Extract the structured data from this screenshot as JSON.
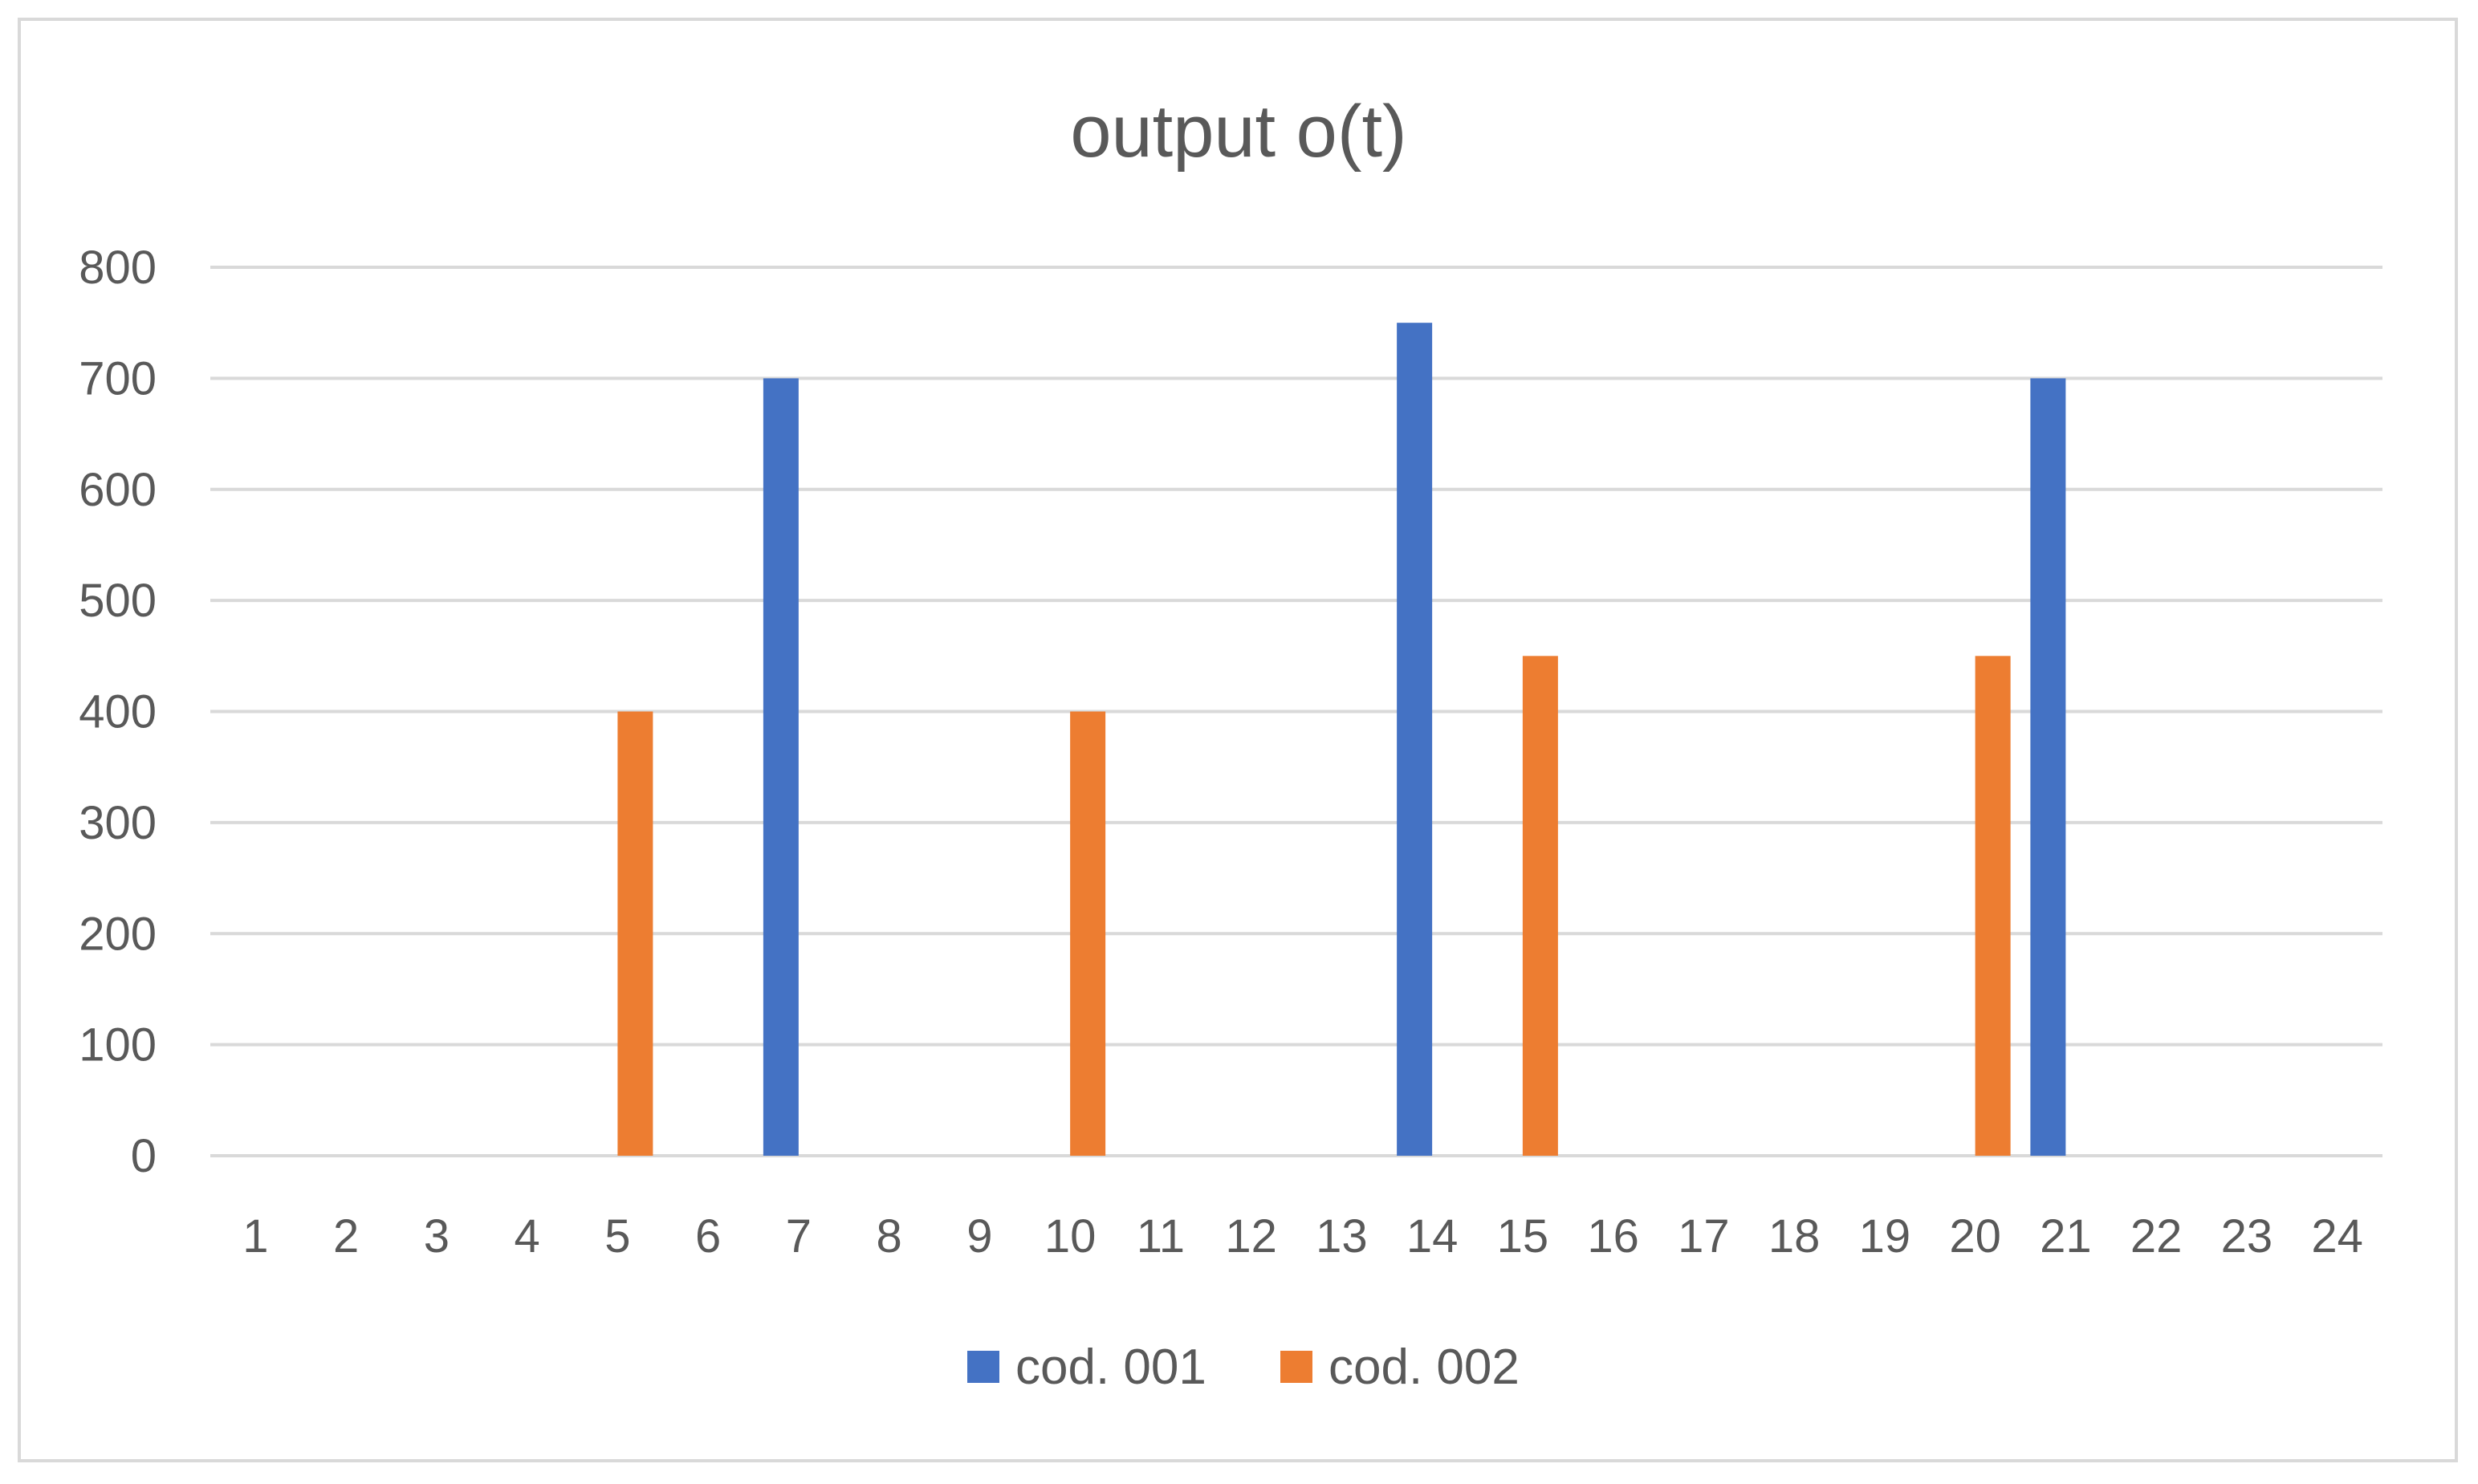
{
  "chart_data": {
    "type": "bar",
    "title": "output o(t)",
    "xlabel": "",
    "ylabel": "",
    "categories": [
      "1",
      "2",
      "3",
      "4",
      "5",
      "6",
      "7",
      "8",
      "9",
      "10",
      "11",
      "12",
      "13",
      "14",
      "15",
      "16",
      "17",
      "18",
      "19",
      "20",
      "21",
      "22",
      "23",
      "24"
    ],
    "series": [
      {
        "name": "cod. 001",
        "color": "#4472c4",
        "values": [
          0,
          0,
          0,
          0,
          0,
          0,
          700,
          0,
          0,
          0,
          0,
          0,
          0,
          750,
          0,
          0,
          0,
          0,
          0,
          0,
          700,
          0,
          0,
          0
        ]
      },
      {
        "name": "cod. 002",
        "color": "#ed7d31",
        "values": [
          0,
          0,
          0,
          0,
          400,
          0,
          0,
          0,
          0,
          400,
          0,
          0,
          0,
          0,
          450,
          0,
          0,
          0,
          0,
          450,
          0,
          0,
          0,
          0
        ]
      }
    ],
    "ylim": [
      0,
      800
    ],
    "yticks": [
      0,
      100,
      200,
      300,
      400,
      500,
      600,
      700,
      800
    ],
    "grid": true,
    "legend_position": "bottom"
  }
}
